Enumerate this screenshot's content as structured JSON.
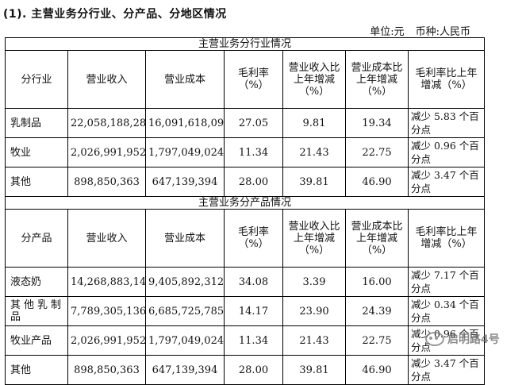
{
  "heading": "(1). 主营业务分行业、分产品、分地区情况",
  "unit": {
    "unit_label": "单位:元",
    "currency_label": "币种:人民币"
  },
  "industry_section": {
    "title": "主营业务分行业情况",
    "headers": [
      "分行业",
      "营业收入",
      "营业成本",
      "毛利率（%）",
      "营业收入比上年增减（%）",
      "营业成本比上年增减（%）",
      "毛利率比上年增减（%）"
    ],
    "rows": [
      {
        "name": "乳制品",
        "revenue": "22,058,188,285",
        "cost": "16,091,618,097",
        "margin": "27.05",
        "rev_change": "9.81",
        "cost_change": "19.34",
        "margin_change": "减少 5.83 个百分点"
      },
      {
        "name": "牧业",
        "revenue": "2,026,991,952",
        "cost": "1,797,049,024",
        "margin": "11.34",
        "rev_change": "21.43",
        "cost_change": "22.75",
        "margin_change": "减少 0.96 个百分点"
      },
      {
        "name": "其他",
        "revenue": "898,850,363",
        "cost": "647,139,394",
        "margin": "28.00",
        "rev_change": "39.81",
        "cost_change": "46.90",
        "margin_change": "减少 3.47 个百分点"
      }
    ]
  },
  "product_section": {
    "title": "主营业务分产品情况",
    "headers": [
      "分产品",
      "营业收入",
      "营业成本",
      "毛利率（%）",
      "营业收入比上年增减（%）",
      "营业成本比上年增减（%）",
      "毛利率比上年增减（%）"
    ],
    "rows": [
      {
        "name": "液态奶",
        "revenue": "14,268,883,149",
        "cost": "9,405,892,312",
        "margin": "34.08",
        "rev_change": "3.39",
        "cost_change": "16.00",
        "margin_change": "减少 7.17 个百分点"
      },
      {
        "name": "其他乳制品",
        "revenue": "7,789,305,136",
        "cost": "6,685,725,785",
        "margin": "14.17",
        "rev_change": "23.90",
        "cost_change": "24.39",
        "margin_change": "减少 0.34 个百分点"
      },
      {
        "name": "牧业产品",
        "revenue": "2,026,991,952",
        "cost": "1,797,049,024",
        "margin": "11.34",
        "rev_change": "21.43",
        "cost_change": "22.75",
        "margin_change": "减少 0.96 个百分点"
      },
      {
        "name": "其他",
        "revenue": "898,850,363",
        "cost": "647,139,394",
        "margin": "28.00",
        "rev_change": "39.81",
        "cost_change": "46.90",
        "margin_change": "减少 3.47 个百分点"
      }
    ]
  },
  "watermark": {
    "text": "启明路4号",
    "icon": "wechat-icon"
  }
}
